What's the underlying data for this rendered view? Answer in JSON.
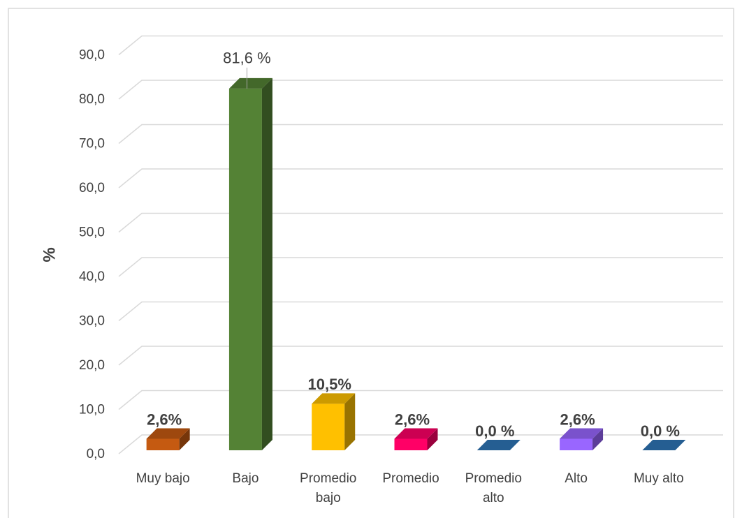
{
  "chart_data": {
    "type": "bar3d",
    "y_label": "%",
    "categories": [
      "Muy bajo",
      "Bajo",
      "Promedio bajo",
      "Promedio",
      "Promedio alto",
      "Alto",
      "Muy alto"
    ],
    "values": [
      2.6,
      81.6,
      10.5,
      2.6,
      0.0,
      2.6,
      0.0
    ],
    "value_labels": [
      "2,6%",
      "81,6 %",
      "10,5%",
      "2,6%",
      "0,0 %",
      "2,6%",
      "0,0 %"
    ],
    "colors": [
      "#c55a11",
      "#548235",
      "#ffc000",
      "#ff0066",
      "#2e75b6",
      "#9966ff",
      "#2e75b6"
    ],
    "ylim": [
      0,
      90
    ],
    "yticks": [
      {
        "value": 0,
        "label": "0,0"
      },
      {
        "value": 10,
        "label": "10,0"
      },
      {
        "value": 20,
        "label": "20,0"
      },
      {
        "value": 30,
        "label": "30,0"
      },
      {
        "value": 40,
        "label": "40,0"
      },
      {
        "value": 50,
        "label": "50,0"
      },
      {
        "value": 60,
        "label": "60,0"
      },
      {
        "value": 70,
        "label": "70,0"
      },
      {
        "value": 80,
        "label": "80,0"
      },
      {
        "value": 90,
        "label": "90,0"
      }
    ],
    "grid": true
  }
}
